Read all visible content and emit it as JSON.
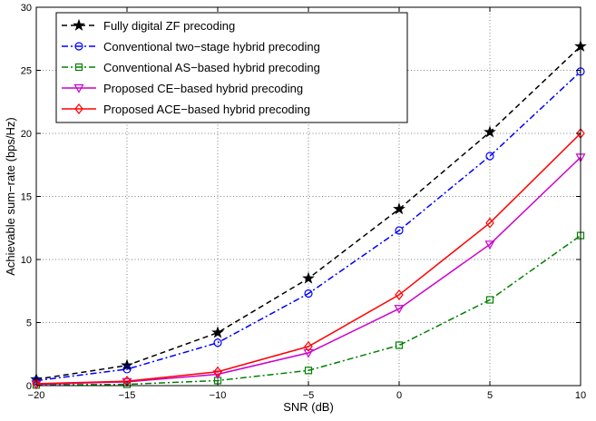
{
  "chart_data": {
    "type": "line",
    "title": "",
    "xlabel": "SNR (dB)",
    "ylabel": "Achievable sum−rate (bps/Hz)",
    "xlim": [
      -20,
      10
    ],
    "ylim": [
      0,
      30
    ],
    "xticks": [
      -20,
      -15,
      -10,
      -5,
      0,
      5,
      10
    ],
    "yticks": [
      0,
      5,
      10,
      15,
      20,
      25,
      30
    ],
    "xtick_labels": [
      "−20",
      "−15",
      "−10",
      "−5",
      "0",
      "5",
      "10"
    ],
    "ytick_labels": [
      "0",
      "5",
      "10",
      "15",
      "20",
      "25",
      "30"
    ],
    "grid": true,
    "legend_position": "top-left",
    "x": [
      -20,
      -15,
      -10,
      -5,
      0,
      5,
      10
    ],
    "series": [
      {
        "name": "Fully digital ZF precoding",
        "values": [
          0.5,
          1.6,
          4.2,
          8.5,
          14.0,
          20.1,
          26.9
        ],
        "color": "#000000",
        "dash": "dashed",
        "marker": "star"
      },
      {
        "name": "Conventional two−stage hybrid precoding",
        "values": [
          0.4,
          1.3,
          3.4,
          7.3,
          12.3,
          18.2,
          24.9
        ],
        "color": "#0000ff",
        "dash": "dashdot",
        "marker": "circle"
      },
      {
        "name": "Conventional AS−based hybrid precoding",
        "values": [
          0.05,
          0.1,
          0.4,
          1.2,
          3.2,
          6.8,
          11.9
        ],
        "color": "#008000",
        "dash": "dashdot",
        "marker": "square"
      },
      {
        "name": "Proposed CE−based hybrid precoding",
        "values": [
          0.1,
          0.3,
          0.9,
          2.6,
          6.1,
          11.2,
          18.1
        ],
        "color": "#cc00cc",
        "dash": "solid",
        "marker": "triangle-down"
      },
      {
        "name": "Proposed ACE−based hybrid precoding",
        "values": [
          0.15,
          0.35,
          1.1,
          3.1,
          7.2,
          12.9,
          20.0
        ],
        "color": "#ff0000",
        "dash": "solid",
        "marker": "diamond"
      }
    ]
  }
}
